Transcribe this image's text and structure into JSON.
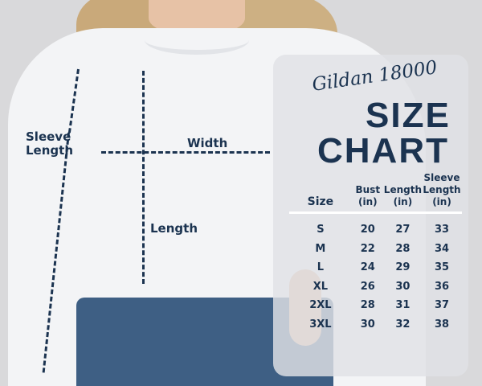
{
  "diagram": {
    "sleeve_label": "Sleeve Length",
    "width_label": "Width",
    "length_label": "Length"
  },
  "chart": {
    "brand": "Gildan 18000",
    "title_line1": "SIZE",
    "title_line2": "CHART",
    "headers": [
      "Size",
      "Bust (in)",
      "Length (in)",
      "Sleeve Length (in)"
    ],
    "rows": [
      [
        "S",
        "20",
        "27",
        "33"
      ],
      [
        "M",
        "22",
        "28",
        "34"
      ],
      [
        "L",
        "24",
        "29",
        "35"
      ],
      [
        "XL",
        "26",
        "30",
        "36"
      ],
      [
        "2XL",
        "28",
        "31",
        "37"
      ],
      [
        "3XL",
        "30",
        "32",
        "38"
      ]
    ]
  },
  "colors": {
    "text": "#1b3350",
    "background": "#d9d9db"
  }
}
